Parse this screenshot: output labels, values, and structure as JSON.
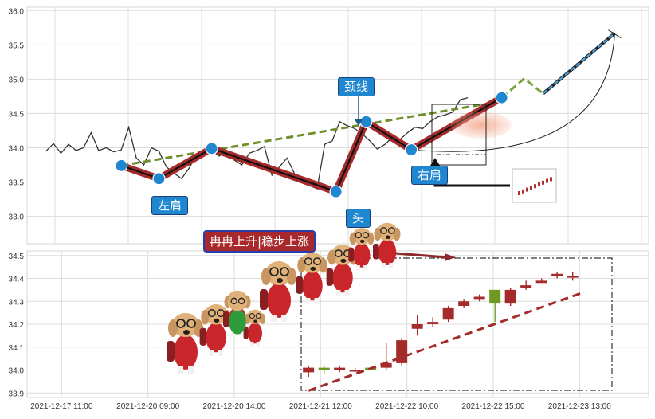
{
  "chart_data": [
    {
      "type": "line",
      "panel": "top",
      "ylim": [
        32.6,
        36.05
      ],
      "yticks": [
        "33.0",
        "33.5",
        "34.0",
        "34.5",
        "35.0",
        "35.5",
        "36.0"
      ],
      "ytick_values": [
        33.0,
        33.5,
        34.0,
        34.5,
        35.0,
        35.5,
        36.0
      ],
      "xlim": [
        -5,
        160
      ],
      "grid": true,
      "price_series": {
        "x": [
          0,
          2,
          4,
          6,
          8,
          10,
          12,
          14,
          16,
          18,
          20,
          22,
          24,
          26,
          28,
          30,
          32,
          34,
          36,
          38,
          40,
          42,
          44,
          46,
          48,
          50,
          52,
          54,
          56,
          58,
          60,
          62,
          64,
          66,
          68,
          70,
          72,
          74,
          76,
          78,
          80,
          82,
          84,
          86,
          88,
          90,
          92,
          94,
          96,
          98,
          100,
          102,
          104,
          106,
          108,
          110,
          112,
          114,
          116,
          118,
          120,
          122,
          124,
          126,
          128,
          130,
          132,
          134,
          136,
          138,
          140,
          142,
          144
        ],
        "y": [
          33.95,
          34.06,
          33.92,
          34.05,
          33.96,
          34.0,
          34.22,
          33.96,
          34.0,
          33.94,
          33.97,
          34.3,
          33.85,
          33.75,
          34.0,
          33.95,
          33.72,
          33.63,
          33.55,
          33.7,
          33.9,
          33.93,
          33.96,
          33.88,
          33.95,
          33.82,
          33.75,
          33.92,
          33.96,
          34.02,
          33.6,
          33.72,
          33.85,
          33.62,
          33.55,
          33.45,
          33.4,
          34.05,
          34.1,
          34.38,
          34.32,
          34.28,
          34.2,
          34.1,
          33.98,
          34.05,
          34.15,
          34.12,
          34.22,
          34.3,
          34.28,
          34.38,
          34.45,
          34.48,
          34.52,
          34.7,
          34.73,
          null,
          null,
          null,
          null,
          null,
          null,
          null,
          null,
          null,
          null,
          null,
          null,
          null,
          null,
          null,
          null
        ]
      },
      "pattern_points": [
        {
          "x": 20,
          "y": 33.74
        },
        {
          "x": 30,
          "y": 33.55
        },
        {
          "x": 44,
          "y": 33.99
        },
        {
          "x": 77,
          "y": 33.36
        },
        {
          "x": 85,
          "y": 34.38
        },
        {
          "x": 97,
          "y": 33.97
        },
        {
          "x": 121,
          "y": 34.73
        }
      ],
      "neckline": {
        "x": [
          20,
          118
        ],
        "y": [
          33.74,
          34.65
        ]
      },
      "projection_green": {
        "x": [
          121,
          127,
          132
        ],
        "y": [
          34.73,
          35.01,
          34.79
        ]
      },
      "projection_blue": {
        "x": [
          132,
          151
        ],
        "y": [
          34.79,
          35.67
        ]
      },
      "annotations": [
        {
          "key": "left_shoulder",
          "text": "左肩"
        },
        {
          "key": "head",
          "text": "头"
        },
        {
          "key": "right_shoulder",
          "text": "右肩"
        },
        {
          "key": "neckline",
          "text": "颈线"
        }
      ]
    },
    {
      "type": "candlestick",
      "panel": "bottom",
      "ylim": [
        33.88,
        34.52
      ],
      "yticks": [
        "33.9",
        "34.0",
        "34.1",
        "34.2",
        "34.3",
        "34.4",
        "34.5"
      ],
      "ytick_values": [
        33.9,
        34.0,
        34.1,
        34.2,
        34.3,
        34.4,
        34.5
      ],
      "x_tick_labels": [
        "2021-12-17 11:00",
        "2021-12-20 09:00",
        "2021-12-20 14:00",
        "2021-12-21 12:00",
        "2021-12-22 10:00",
        "2021-12-22 15:00",
        "2021-12-23 13:00"
      ],
      "x_tick_positions": [
        0,
        10,
        20,
        30,
        40,
        50,
        60
      ],
      "xlim": [
        -4,
        68
      ],
      "grid": true,
      "candles": [
        {
          "x": 28.6,
          "open": 33.99,
          "close": 34.01,
          "high": 34.02,
          "low": 33.97,
          "color": "red"
        },
        {
          "x": 30.4,
          "open": 34.01,
          "close": 34.0,
          "high": 34.02,
          "low": 33.98,
          "color": "green"
        },
        {
          "x": 32.2,
          "open": 34.0,
          "close": 34.01,
          "high": 34.02,
          "low": 33.99,
          "color": "red"
        },
        {
          "x": 34.0,
          "open": 34.0,
          "close": 34.0,
          "high": 34.01,
          "low": 33.99,
          "color": "red"
        },
        {
          "x": 35.8,
          "open": 34.01,
          "close": 34.0,
          "high": 34.01,
          "low": 34.0,
          "color": "green"
        },
        {
          "x": 37.6,
          "open": 34.01,
          "close": 34.03,
          "high": 34.12,
          "low": 34.0,
          "color": "red"
        },
        {
          "x": 39.4,
          "open": 34.03,
          "close": 34.13,
          "high": 34.14,
          "low": 34.02,
          "color": "red"
        },
        {
          "x": 41.2,
          "open": 34.18,
          "close": 34.2,
          "high": 34.24,
          "low": 34.15,
          "color": "red"
        },
        {
          "x": 43.0,
          "open": 34.2,
          "close": 34.21,
          "high": 34.23,
          "low": 34.19,
          "color": "red"
        },
        {
          "x": 44.8,
          "open": 34.22,
          "close": 34.27,
          "high": 34.28,
          "low": 34.21,
          "color": "red"
        },
        {
          "x": 46.6,
          "open": 34.28,
          "close": 34.3,
          "high": 34.31,
          "low": 34.27,
          "color": "red"
        },
        {
          "x": 48.4,
          "open": 34.31,
          "close": 34.32,
          "high": 34.33,
          "low": 34.3,
          "color": "red"
        },
        {
          "x": 50.2,
          "open": 34.35,
          "close": 34.29,
          "high": 34.35,
          "low": 34.21,
          "color": "green"
        },
        {
          "x": 52.0,
          "open": 34.29,
          "close": 34.35,
          "high": 34.36,
          "low": 34.28,
          "color": "red"
        },
        {
          "x": 53.8,
          "open": 34.36,
          "close": 34.37,
          "high": 34.39,
          "low": 34.35,
          "color": "red"
        },
        {
          "x": 55.6,
          "open": 34.38,
          "close": 34.39,
          "high": 34.4,
          "low": 34.38,
          "color": "red"
        },
        {
          "x": 57.4,
          "open": 34.41,
          "close": 34.42,
          "high": 34.43,
          "low": 34.4,
          "color": "red"
        },
        {
          "x": 59.2,
          "open": 34.41,
          "close": 34.41,
          "high": 34.43,
          "low": 34.39,
          "color": "red"
        }
      ],
      "trend_line": {
        "x": [
          28.6,
          60.5
        ],
        "y": [
          33.91,
          34.34
        ]
      },
      "banner": "冉冉上升|稳步上涨"
    }
  ]
}
